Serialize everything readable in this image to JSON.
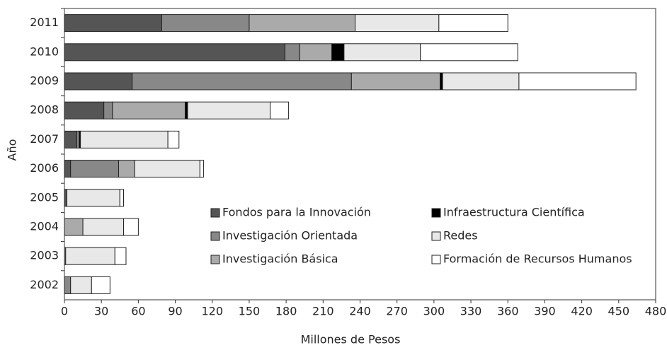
{
  "chart_data": {
    "type": "bar",
    "orientation": "horizontal",
    "stacked": true,
    "xlabel": "Millones de Pesos",
    "ylabel": "Año",
    "categories": [
      "2011",
      "2010",
      "2009",
      "2008",
      "2007",
      "2006",
      "2005",
      "2004",
      "2003",
      "2002"
    ],
    "series": [
      {
        "name": "Fondos para la Innovación",
        "color": "#555555",
        "values": [
          79,
          179,
          55,
          32,
          10,
          5,
          2,
          0,
          0,
          0
        ]
      },
      {
        "name": "Investigación Orientada",
        "color": "#888888",
        "values": [
          71,
          12,
          178,
          7,
          2,
          39,
          0,
          0,
          0,
          5
        ]
      },
      {
        "name": "Investigación Básica",
        "color": "#aaaaaa",
        "values": [
          86,
          26,
          72,
          59,
          0,
          13,
          0,
          15,
          1,
          0
        ]
      },
      {
        "name": "Infraestructura Científica",
        "color": "#000000",
        "values": [
          0,
          10,
          2,
          2,
          1,
          0,
          0,
          0,
          0,
          0
        ]
      },
      {
        "name": "Redes",
        "color": "#e8e8e8",
        "values": [
          68,
          62,
          62,
          67,
          71,
          53,
          43,
          33,
          40,
          17
        ]
      },
      {
        "name": "Formación de Recursos Humanos",
        "color": "#ffffff",
        "values": [
          56,
          79,
          95,
          15,
          9,
          3,
          3,
          12,
          9,
          15
        ]
      }
    ],
    "xlim": [
      0,
      480
    ],
    "xticks": [
      0,
      30,
      60,
      90,
      120,
      150,
      180,
      210,
      240,
      270,
      300,
      330,
      360,
      390,
      420,
      450,
      480
    ],
    "legend": "lower right"
  }
}
